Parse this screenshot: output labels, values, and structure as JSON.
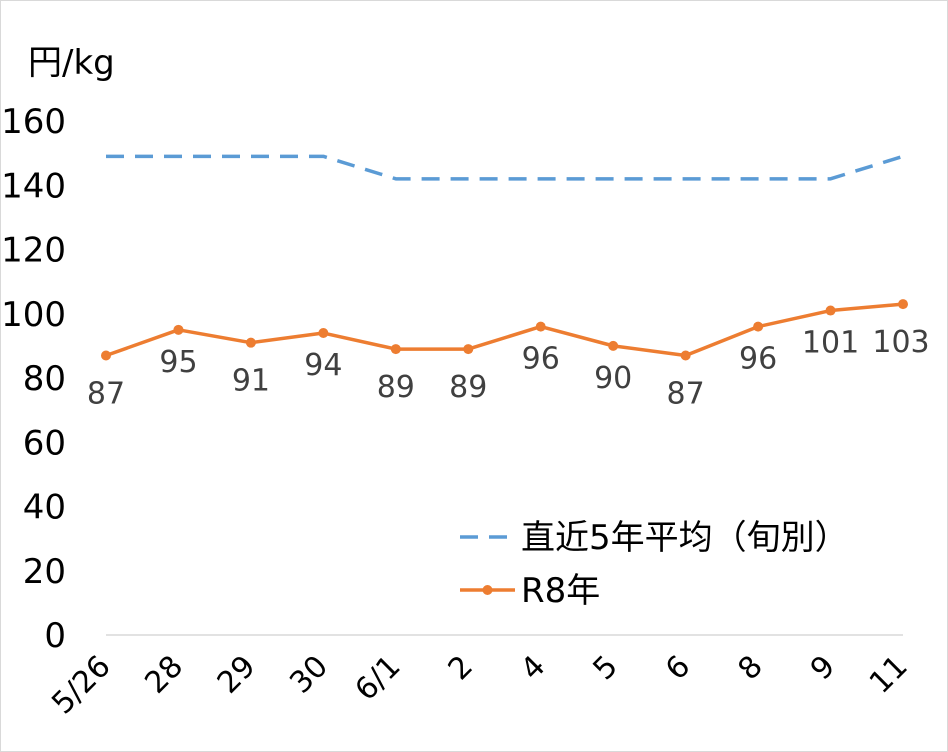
{
  "chart_data": {
    "type": "line",
    "unit_label": "円/kg",
    "categories": [
      "5/26",
      "28",
      "29",
      "30",
      "6/1",
      "2",
      "4",
      "5",
      "6",
      "8",
      "9",
      "11"
    ],
    "ylim": [
      0,
      160
    ],
    "yticks": [
      "0",
      "20",
      "40",
      "60",
      "80",
      "100",
      "120",
      "140",
      "160"
    ],
    "grid": false,
    "legend_position": "bottom-right",
    "series": [
      {
        "name": "直近5年平均（旬別）",
        "values": [
          149,
          149,
          149,
          149,
          142,
          142,
          142,
          142,
          142,
          142,
          142,
          149
        ],
        "style": "dashed",
        "color": "#5B9BD5",
        "markers": false,
        "data_labels": false
      },
      {
        "name": "R8年",
        "values": [
          87,
          95,
          91,
          94,
          89,
          89,
          96,
          90,
          87,
          96,
          101,
          103
        ],
        "style": "solid",
        "color": "#ED7D31",
        "markers": true,
        "data_labels": true
      }
    ]
  }
}
